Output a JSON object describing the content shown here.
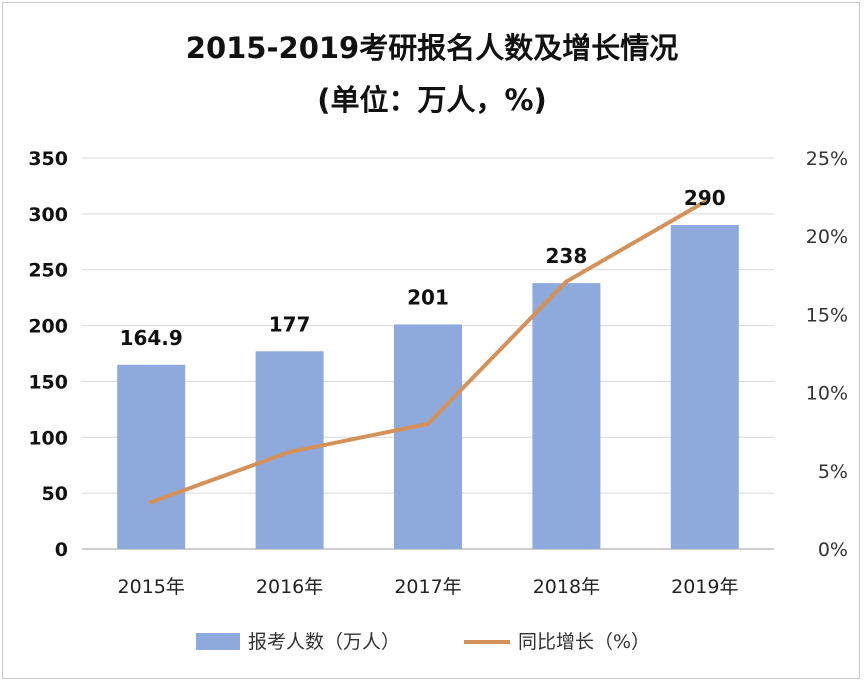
{
  "chart_data": {
    "type": "bar",
    "title": "2015-2019考研报名人数及增长情况",
    "subtitle": "(单位：万人，%)",
    "categories": [
      "2015年",
      "2016年",
      "2017年",
      "2018年",
      "2019年"
    ],
    "series": [
      {
        "name": "报考人数（万人）",
        "type": "bar",
        "axis": "left",
        "values": [
          164.9,
          177,
          201,
          238,
          290
        ],
        "data_labels": [
          "164.9",
          "177",
          "201",
          "238",
          "290"
        ],
        "color": "#8EA9DB"
      },
      {
        "name": "同比增长（%）",
        "type": "line",
        "axis": "right",
        "values": [
          3.0,
          6.2,
          8.0,
          17.1,
          22.2
        ],
        "color": "#D4915A"
      }
    ],
    "ylim_left": [
      0,
      350
    ],
    "yticks_left": [
      "0",
      "50",
      "100",
      "150",
      "200",
      "250",
      "300",
      "350"
    ],
    "ylim_right": [
      0,
      25
    ],
    "yticks_right": [
      "0%",
      "5%",
      "10%",
      "15%",
      "20%",
      "25%"
    ],
    "grid": true,
    "legend_position": "bottom"
  }
}
